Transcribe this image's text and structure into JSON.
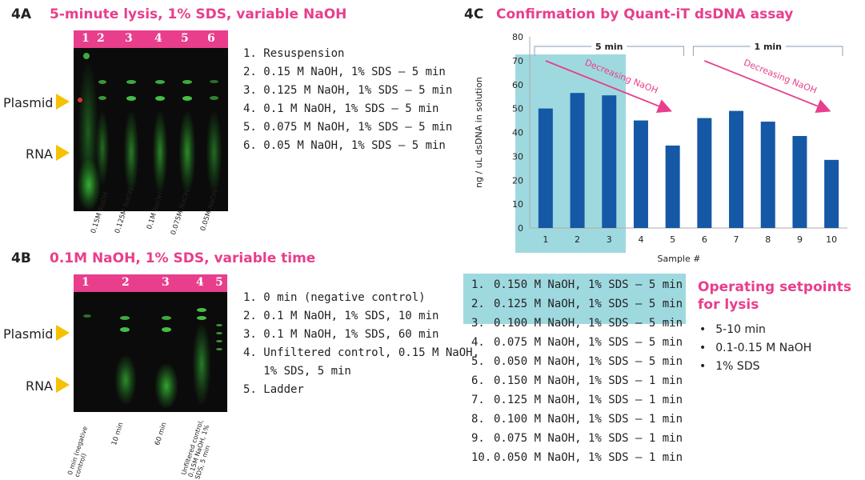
{
  "panel_4a": {
    "id": "4A",
    "title": "5-minute lysis, 1% SDS, variable NaOH",
    "lane_numbers": [
      "1",
      "2",
      "3",
      "4",
      "5",
      "6"
    ],
    "plasmid_label": "Plasmid",
    "rna_label": "RNA",
    "lane_labels": [
      "0.15M NaOH",
      "0.125M NaOH",
      "0.1M NaOH",
      "0.075M NaOH",
      "0.05M NaOH"
    ],
    "legend": [
      "1. Resuspension",
      "2. 0.15 M NaOH, 1% SDS – 5 min",
      "3. 0.125 M NaOH, 1% SDS – 5 min",
      "4. 0.1 M NaOH, 1% SDS – 5 min",
      "5. 0.075 M NaOH, 1% SDS – 5 min",
      "6. 0.05 M NaOH, 1% SDS – 5 min"
    ]
  },
  "panel_4b": {
    "id": "4B",
    "title": "0.1M NaOH, 1% SDS, variable time",
    "lane_numbers": [
      "1",
      "2",
      "3",
      "4",
      "5"
    ],
    "plasmid_label": "Plasmid",
    "rna_label": "RNA",
    "lane_labels": [
      "0 min (negative control)",
      "10 min",
      "60 min",
      "Unfiltered control, 0.15M NaOH, 1% SDS, 5 min"
    ],
    "legend": [
      "1. 0 min (negative control)",
      "2. 0.1 M NaOH, 1% SDS, 10 min",
      "3. 0.1 M NaOH, 1% SDS, 60 min",
      "4. Unfiltered control, 0.15 M NaOH,",
      "   1% SDS, 5 min",
      "5. Ladder"
    ]
  },
  "panel_4c": {
    "id": "4C",
    "title": "Confirmation by Quant-iT dsDNA assay",
    "bracket_5min": "5 min",
    "bracket_1min": "1 min",
    "annotation": "Decreasing NaOH",
    "table": [
      {
        "num": "1.",
        "text": "0.150 M NaOH, 1% SDS – 5 min"
      },
      {
        "num": "2.",
        "text": "0.125 M NaOH, 1% SDS – 5 min"
      },
      {
        "num": "3.",
        "text": "0.100 M NaOH, 1% SDS – 5 min"
      },
      {
        "num": "4.",
        "text": "0.075 M NaOH, 1% SDS – 5 min"
      },
      {
        "num": "5.",
        "text": "0.050 M NaOH, 1% SDS – 5 min"
      },
      {
        "num": "6.",
        "text": "0.150 M NaOH, 1% SDS – 1 min"
      },
      {
        "num": "7.",
        "text": "0.125 M NaOH, 1% SDS – 1 min"
      },
      {
        "num": "8.",
        "text": "0.100 M NaOH, 1% SDS – 1 min"
      },
      {
        "num": "9.",
        "text": "0.075 M NaOH, 1% SDS – 1 min"
      },
      {
        "num": "10.",
        "text": "0.050 M NaOH, 1% SDS – 1 min"
      }
    ],
    "operating_title_line1": "Operating setpoints",
    "operating_title_line2": "for lysis",
    "operating_points": [
      "5-10 min",
      "0.1-0.15 M NaOH",
      "1% SDS"
    ]
  },
  "colors": {
    "accent_pink": "#e83e8c",
    "bar_blue": "#1558a5",
    "highlight_cyan": "#9fd9e0",
    "marker_yellow": "#f5c100"
  },
  "chart_data": {
    "type": "bar",
    "title": "",
    "xlabel": "Sample #",
    "ylabel": "ng / uL dsDNA in solution",
    "categories": [
      "1",
      "2",
      "3",
      "4",
      "5",
      "6",
      "7",
      "8",
      "9",
      "10"
    ],
    "values": [
      50,
      56.5,
      55.5,
      45,
      34.5,
      46,
      49,
      44.5,
      38.5,
      28.5
    ],
    "ylim": [
      0,
      80
    ],
    "yticks": [
      0,
      10,
      20,
      30,
      40,
      50,
      60,
      70,
      80
    ],
    "highlighted_categories": [
      "1",
      "2",
      "3"
    ],
    "grid": false,
    "legend": "none"
  }
}
